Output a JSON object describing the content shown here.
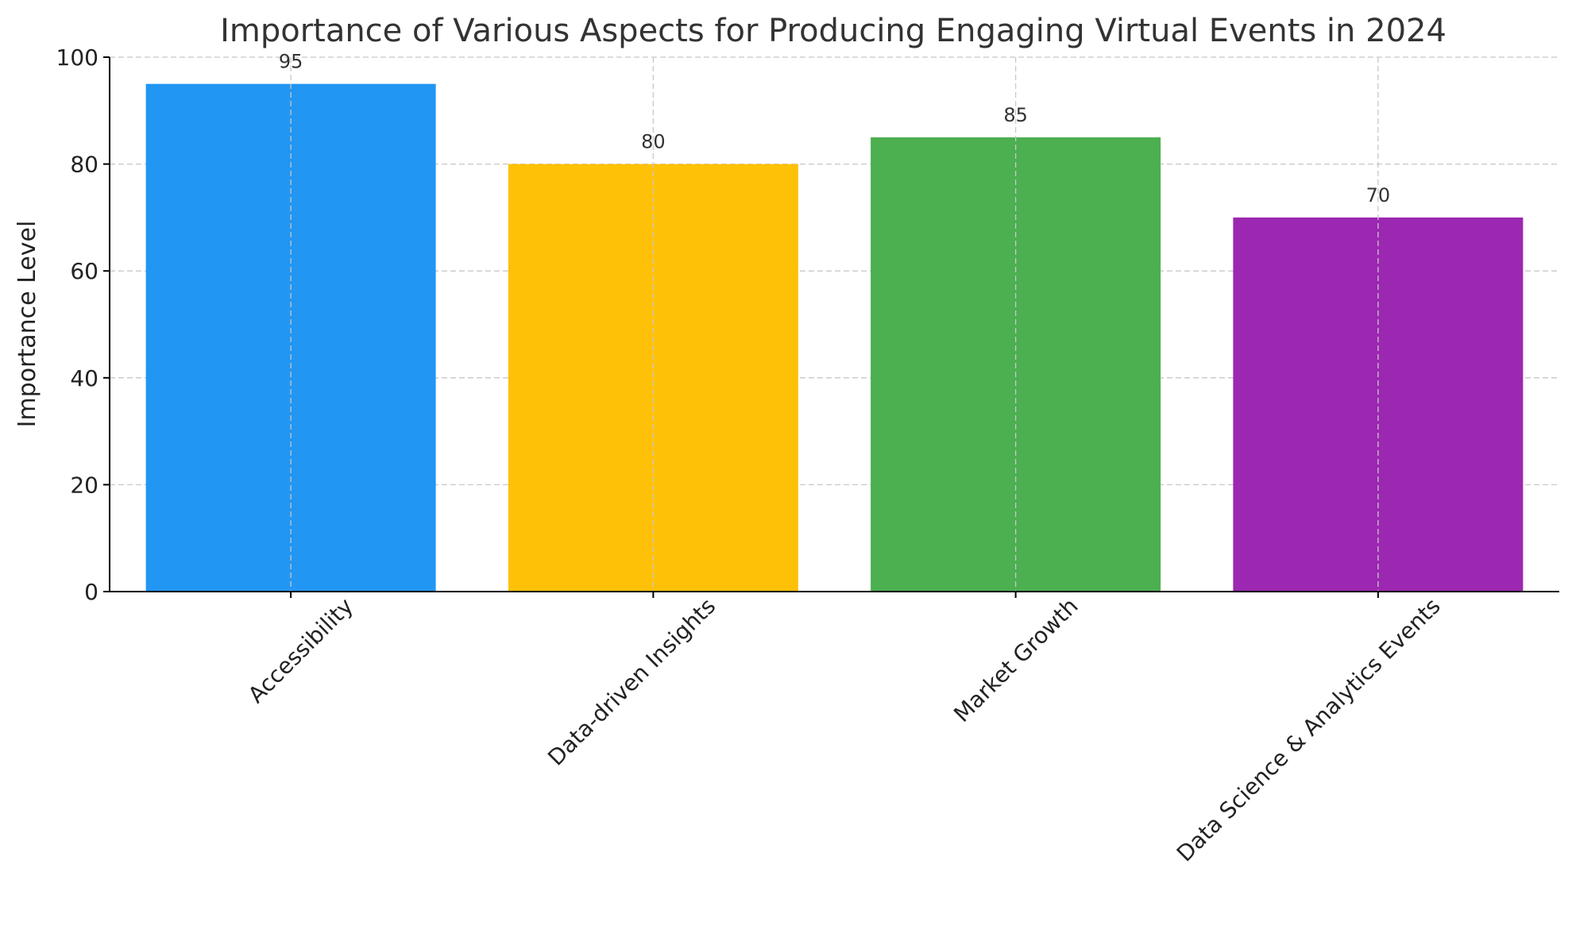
{
  "chart_data": {
    "type": "bar",
    "title": "Importance of Various Aspects for Producing Engaging Virtual Events in 2024",
    "xlabel": "",
    "ylabel": "Importance Level",
    "categories": [
      "Accessibility",
      "Data-driven Insights",
      "Market Growth",
      "Data Science & Analytics Events"
    ],
    "values": [
      95,
      80,
      85,
      70
    ],
    "colors": [
      "#2196f3",
      "#ffc107",
      "#4caf50",
      "#9c27b0"
    ],
    "ylim": [
      0,
      100
    ],
    "yticks": [
      "0",
      "20",
      "40",
      "60",
      "80",
      "100"
    ],
    "data_labels": [
      "95",
      "80",
      "85",
      "70"
    ],
    "grid": true,
    "legend": "none"
  }
}
